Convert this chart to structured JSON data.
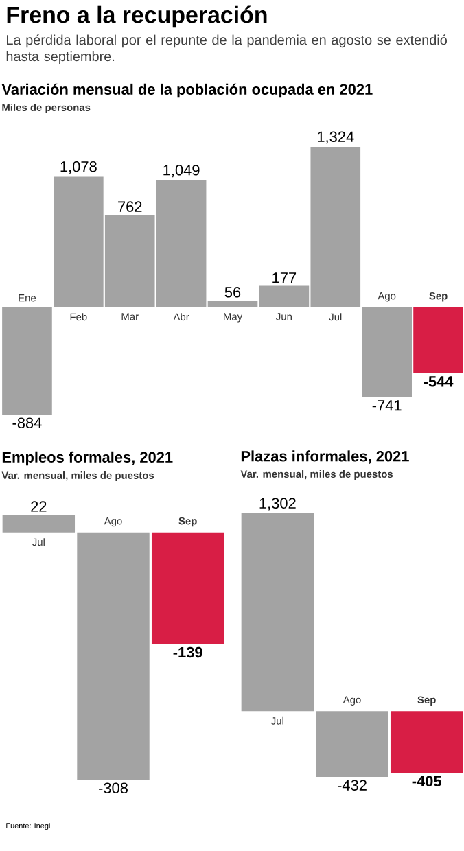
{
  "chart_data": [
    {
      "type": "other",
      "title": "Freno a la recuperación",
      "subtitle": "La pérdida laboral por el repunte de la pandemia en agosto se extendió hasta septiembre.",
      "annotations": [
        "Fuente: Inegi"
      ]
    },
    {
      "type": "bar",
      "title": "Variación mensual de la población ocupada en 2021",
      "subtitle": "Miles de personas",
      "categories": [
        "Ene",
        "Feb",
        "Mar",
        "Abr",
        "May",
        "Jun",
        "Jul",
        "Ago",
        "Sep"
      ],
      "values": [
        -884,
        1078,
        762,
        1049,
        56,
        177,
        1324,
        -741,
        -544
      ],
      "colors": [
        "#a3a3a3",
        "#a3a3a3",
        "#a3a3a3",
        "#a3a3a3",
        "#a3a3a3",
        "#a3a3a3",
        "#a3a3a3",
        "#a3a3a3",
        "#d81e45"
      ],
      "value_labels": [
        "-884",
        "1,078",
        "762",
        "1,049",
        "56",
        "177",
        "1,324",
        "-741",
        "-544"
      ]
    },
    {
      "type": "bar",
      "title": "Empleos formales, 2021",
      "subtitle": "Var. mensual, miles de puestos",
      "categories": [
        "Jul",
        "Ago",
        "Sep"
      ],
      "values": [
        22,
        -308,
        -139
      ],
      "colors": [
        "#a3a3a3",
        "#a3a3a3",
        "#d81e45"
      ],
      "value_labels": [
        "22",
        "-308",
        "-139"
      ]
    },
    {
      "type": "bar",
      "title": "Plazas informales, 2021",
      "subtitle": "Var. mensual, miles de puestos",
      "categories": [
        "Jul",
        "Ago",
        "Sep"
      ],
      "values": [
        1302,
        -432,
        -405
      ],
      "colors": [
        "#a3a3a3",
        "#a3a3a3",
        "#d81e45"
      ],
      "value_labels": [
        "1,302",
        "-432",
        "-405"
      ]
    }
  ]
}
